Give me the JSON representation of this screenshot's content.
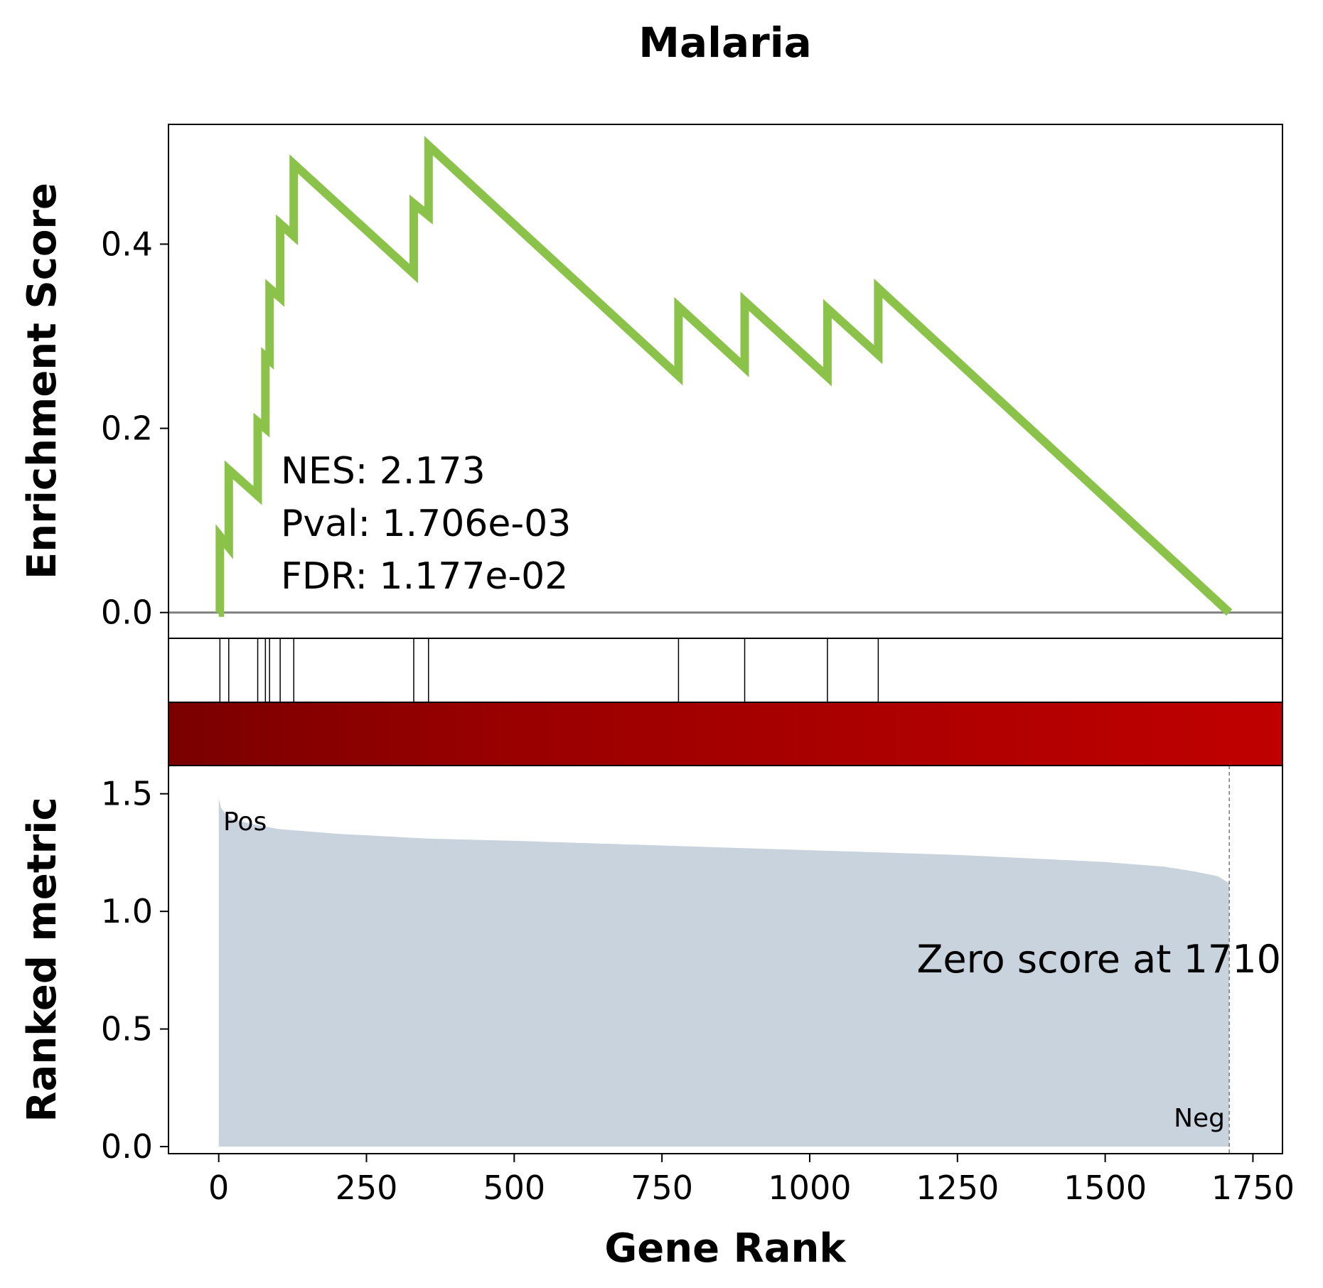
{
  "chart_data": {
    "type": "line",
    "title": "Malaria",
    "xlabel": "Gene Rank",
    "ylabel_top": "Enrichment Score",
    "ylabel_bottom": "Ranked metric",
    "xlim": [
      -85,
      1800
    ],
    "x_ticks": [
      0,
      250,
      500,
      750,
      1000,
      1250,
      1500,
      1750
    ],
    "es_ylim": [
      -0.028,
      0.53
    ],
    "es_ticks": [
      0.0,
      0.2,
      0.4
    ],
    "es_ticks_labels": [
      "0.0",
      "0.2",
      "0.4"
    ],
    "rank_ylim": [
      -0.03,
      1.62
    ],
    "rank_ticks": [
      0.0,
      0.5,
      1.0,
      1.5
    ],
    "rank_ticks_labels": [
      "0.0",
      "0.5",
      "1.0",
      "1.5"
    ],
    "x_ticks_labels": [
      "0",
      "250",
      "500",
      "750",
      "1000",
      "1250",
      "1500",
      "1750"
    ],
    "stats": {
      "nes": "NES: 2.173",
      "pval": "Pval: 1.706e-03",
      "fdr": "FDR: 1.177e-02"
    },
    "zero_score_label": "Zero score at 1710",
    "pos_label": "Pos",
    "neg_label": "Neg",
    "zero_score_rank": 1710,
    "hit_ranks": [
      2,
      17,
      66,
      79,
      86,
      104,
      127,
      330,
      355,
      778,
      890,
      1030,
      1116
    ],
    "series": [
      {
        "values": [
          [
            0,
            0.0
          ],
          [
            2,
            0.0
          ],
          [
            2,
            0.083
          ],
          [
            17,
            0.071
          ],
          [
            17,
            0.155
          ],
          [
            66,
            0.127
          ],
          [
            66,
            0.207
          ],
          [
            79,
            0.2
          ],
          [
            79,
            0.278
          ],
          [
            86,
            0.274
          ],
          [
            86,
            0.352
          ],
          [
            104,
            0.342
          ],
          [
            104,
            0.422
          ],
          [
            127,
            0.409
          ],
          [
            127,
            0.487
          ],
          [
            330,
            0.368
          ],
          [
            330,
            0.444
          ],
          [
            355,
            0.431
          ],
          [
            355,
            0.507
          ],
          [
            778,
            0.257
          ],
          [
            778,
            0.332
          ],
          [
            890,
            0.266
          ],
          [
            890,
            0.338
          ],
          [
            1030,
            0.256
          ],
          [
            1030,
            0.33
          ],
          [
            1116,
            0.28
          ],
          [
            1116,
            0.352
          ],
          [
            1710,
            0.0
          ]
        ]
      }
    ],
    "ranked_metric": [
      [
        0,
        1.48
      ],
      [
        4,
        1.44
      ],
      [
        10,
        1.42
      ],
      [
        25,
        1.39
      ],
      [
        60,
        1.37
      ],
      [
        100,
        1.35
      ],
      [
        200,
        1.33
      ],
      [
        350,
        1.31
      ],
      [
        500,
        1.3
      ],
      [
        750,
        1.28
      ],
      [
        1000,
        1.26
      ],
      [
        1250,
        1.24
      ],
      [
        1500,
        1.21
      ],
      [
        1600,
        1.19
      ],
      [
        1650,
        1.17
      ],
      [
        1690,
        1.15
      ],
      [
        1710,
        1.12
      ]
    ],
    "colors": {
      "es_line": "#8bc34a",
      "baseline": "#808080",
      "metric_fill": "#c8d3dd",
      "heat_start": "#7a0000",
      "heat_end": "#c00000",
      "pos": "#ff0000",
      "neg": "#0000ff"
    }
  }
}
